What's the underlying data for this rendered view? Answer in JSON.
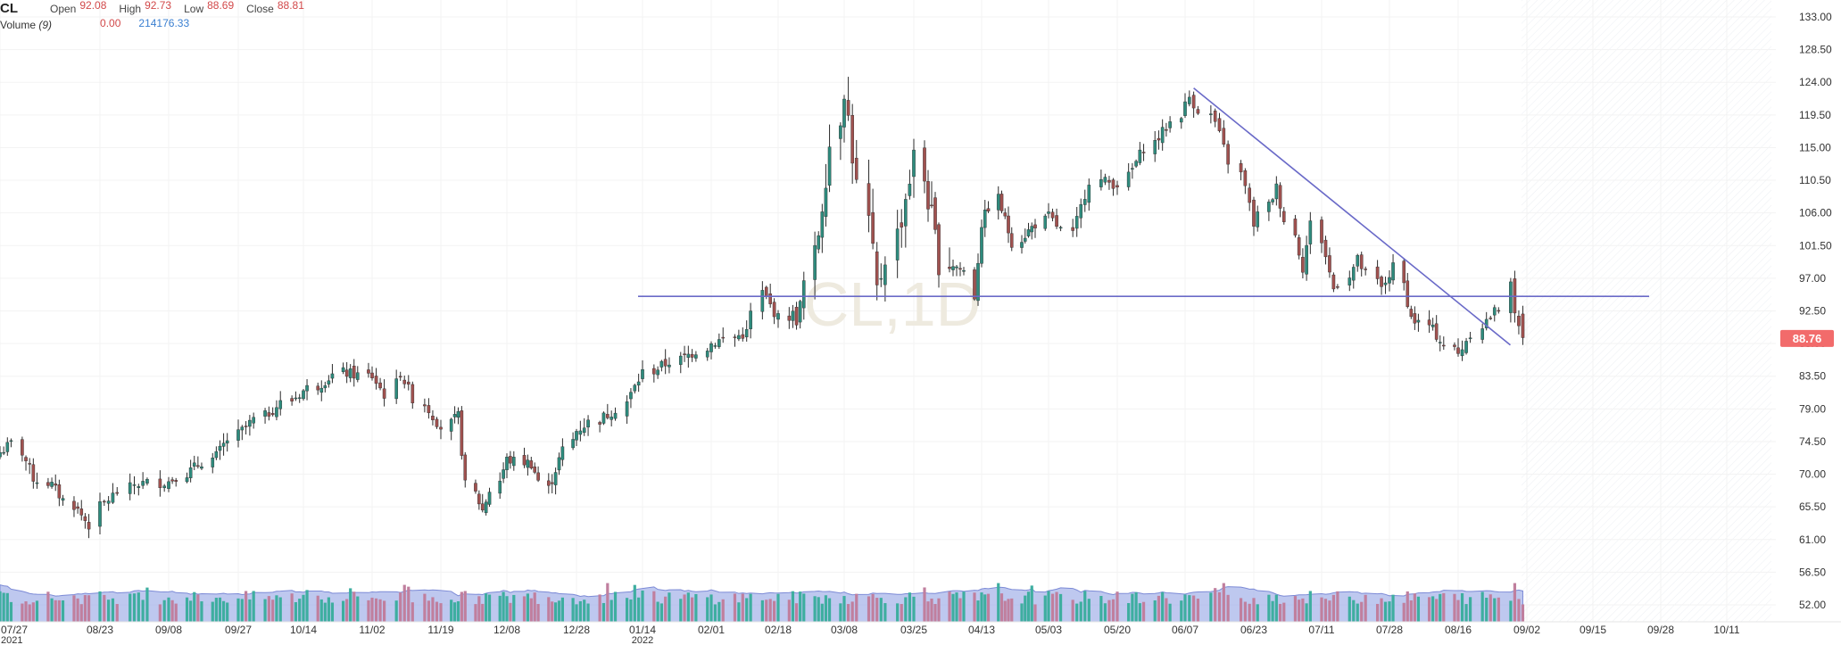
{
  "legend": {
    "symbol": "CL",
    "open_label": "Open",
    "open_value": "92.08",
    "high_label": "High",
    "high_value": "92.73",
    "low_label": "Low",
    "low_value": "88.69",
    "close_label": "Close",
    "close_value": "88.81",
    "volume_label": "Volume",
    "volume_period": "(9)",
    "volume_value": "0.00",
    "volume_ma_value": "214176.33"
  },
  "watermark": "CL,1D",
  "last_price": "88.76",
  "colors": {
    "up": "#2e8b7d",
    "down": "#a0514f",
    "vol_up": "#3eaea0",
    "vol_down": "#c07f9e",
    "vol_area": "#a8b6ea",
    "trend": "#6a6ac8",
    "price_tag": "#f26b6b"
  },
  "chart_data": {
    "type": "candlestick",
    "y_ticks": [
      "133.00",
      "128.50",
      "124.00",
      "119.50",
      "115.00",
      "110.50",
      "106.00",
      "101.50",
      "97.00",
      "92.50",
      "88.00",
      "83.50",
      "79.00",
      "74.50",
      "70.00",
      "65.50",
      "61.00",
      "56.50",
      "52.00"
    ],
    "x_ticks": [
      {
        "label": "07/27",
        "sub": "2021"
      },
      {
        "label": "08/23"
      },
      {
        "label": "09/08"
      },
      {
        "label": "09/27"
      },
      {
        "label": "10/14"
      },
      {
        "label": "11/02"
      },
      {
        "label": "11/19"
      },
      {
        "label": "12/08"
      },
      {
        "label": "12/28"
      },
      {
        "label": "01/14",
        "sub": "2022"
      },
      {
        "label": "02/01"
      },
      {
        "label": "02/18"
      },
      {
        "label": "03/08"
      },
      {
        "label": "03/25"
      },
      {
        "label": "04/13"
      },
      {
        "label": "05/03"
      },
      {
        "label": "05/20"
      },
      {
        "label": "06/07"
      },
      {
        "label": "06/23"
      },
      {
        "label": "07/11"
      },
      {
        "label": "07/28"
      },
      {
        "label": "08/16"
      },
      {
        "label": "09/02"
      },
      {
        "label": "09/15"
      },
      {
        "label": "09/28"
      },
      {
        "label": "10/11"
      }
    ],
    "anchors": [
      [
        "07/27",
        73.0
      ],
      [
        "07/30",
        74.2
      ],
      [
        "08/05",
        69.5
      ],
      [
        "08/10",
        68.5
      ],
      [
        "08/20",
        63.0
      ],
      [
        "08/23",
        65.5
      ],
      [
        "08/31",
        68.6
      ],
      [
        "09/08",
        69.0
      ],
      [
        "09/14",
        70.5
      ],
      [
        "09/21",
        72.5
      ],
      [
        "09/27",
        75.5
      ],
      [
        "10/05",
        78.5
      ],
      [
        "10/14",
        81.5
      ],
      [
        "10/25",
        84.0
      ],
      [
        "11/02",
        83.5
      ],
      [
        "11/05",
        81.0
      ],
      [
        "11/09",
        84.0
      ],
      [
        "11/12",
        80.5
      ],
      [
        "11/19",
        76.5
      ],
      [
        "11/24",
        78.0
      ],
      [
        "11/26",
        68.5
      ],
      [
        "12/01",
        65.0
      ],
      [
        "12/08",
        72.0
      ],
      [
        "12/15",
        71.5
      ],
      [
        "12/20",
        68.0
      ],
      [
        "12/28",
        76.0
      ],
      [
        "01/07",
        79.0
      ],
      [
        "01/14",
        84.0
      ],
      [
        "01/21",
        85.5
      ],
      [
        "01/28",
        87.0
      ],
      [
        "02/01",
        88.0
      ],
      [
        "02/10",
        89.5
      ],
      [
        "02/14",
        95.0
      ],
      [
        "02/18",
        91.5
      ],
      [
        "02/24",
        92.5
      ],
      [
        "03/01",
        103.5
      ],
      [
        "03/04",
        115.5
      ],
      [
        "03/08",
        123.5
      ],
      [
        "03/11",
        109.5
      ],
      [
        "03/16",
        95.0
      ],
      [
        "03/25",
        113.5
      ],
      [
        "04/01",
        99.5
      ],
      [
        "04/08",
        98.0
      ],
      [
        "04/11",
        94.5
      ],
      [
        "04/13",
        104.5
      ],
      [
        "04/18",
        108.0
      ],
      [
        "04/22",
        102.0
      ],
      [
        "04/29",
        104.5
      ],
      [
        "05/03",
        105.5
      ],
      [
        "05/09",
        103.0
      ],
      [
        "05/13",
        110.5
      ],
      [
        "05/20",
        110.0
      ],
      [
        "05/27",
        115.0
      ],
      [
        "06/03",
        118.5
      ],
      [
        "06/08",
        122.0
      ],
      [
        "06/14",
        118.5
      ],
      [
        "06/21",
        109.5
      ],
      [
        "06/23",
        104.5
      ],
      [
        "06/29",
        109.5
      ],
      [
        "07/06",
        98.5
      ],
      [
        "07/08",
        104.5
      ],
      [
        "07/14",
        95.5
      ],
      [
        "07/20",
        99.5
      ],
      [
        "07/26",
        95.5
      ],
      [
        "07/29",
        98.5
      ],
      [
        "08/03",
        91.5
      ],
      [
        "08/08",
        90.5
      ],
      [
        "08/16",
        86.5
      ],
      [
        "08/22",
        90.5
      ],
      [
        "08/26",
        93.0
      ],
      [
        "08/29",
        97.0
      ],
      [
        "08/30",
        91.5
      ],
      [
        "09/01",
        88.8
      ]
    ],
    "last_close": 88.81,
    "support_line": 94.5,
    "trendline": [
      [
        "06/09",
        123.2
      ],
      [
        "09/01",
        87.8
      ]
    ],
    "volume_ma_period": 9
  }
}
